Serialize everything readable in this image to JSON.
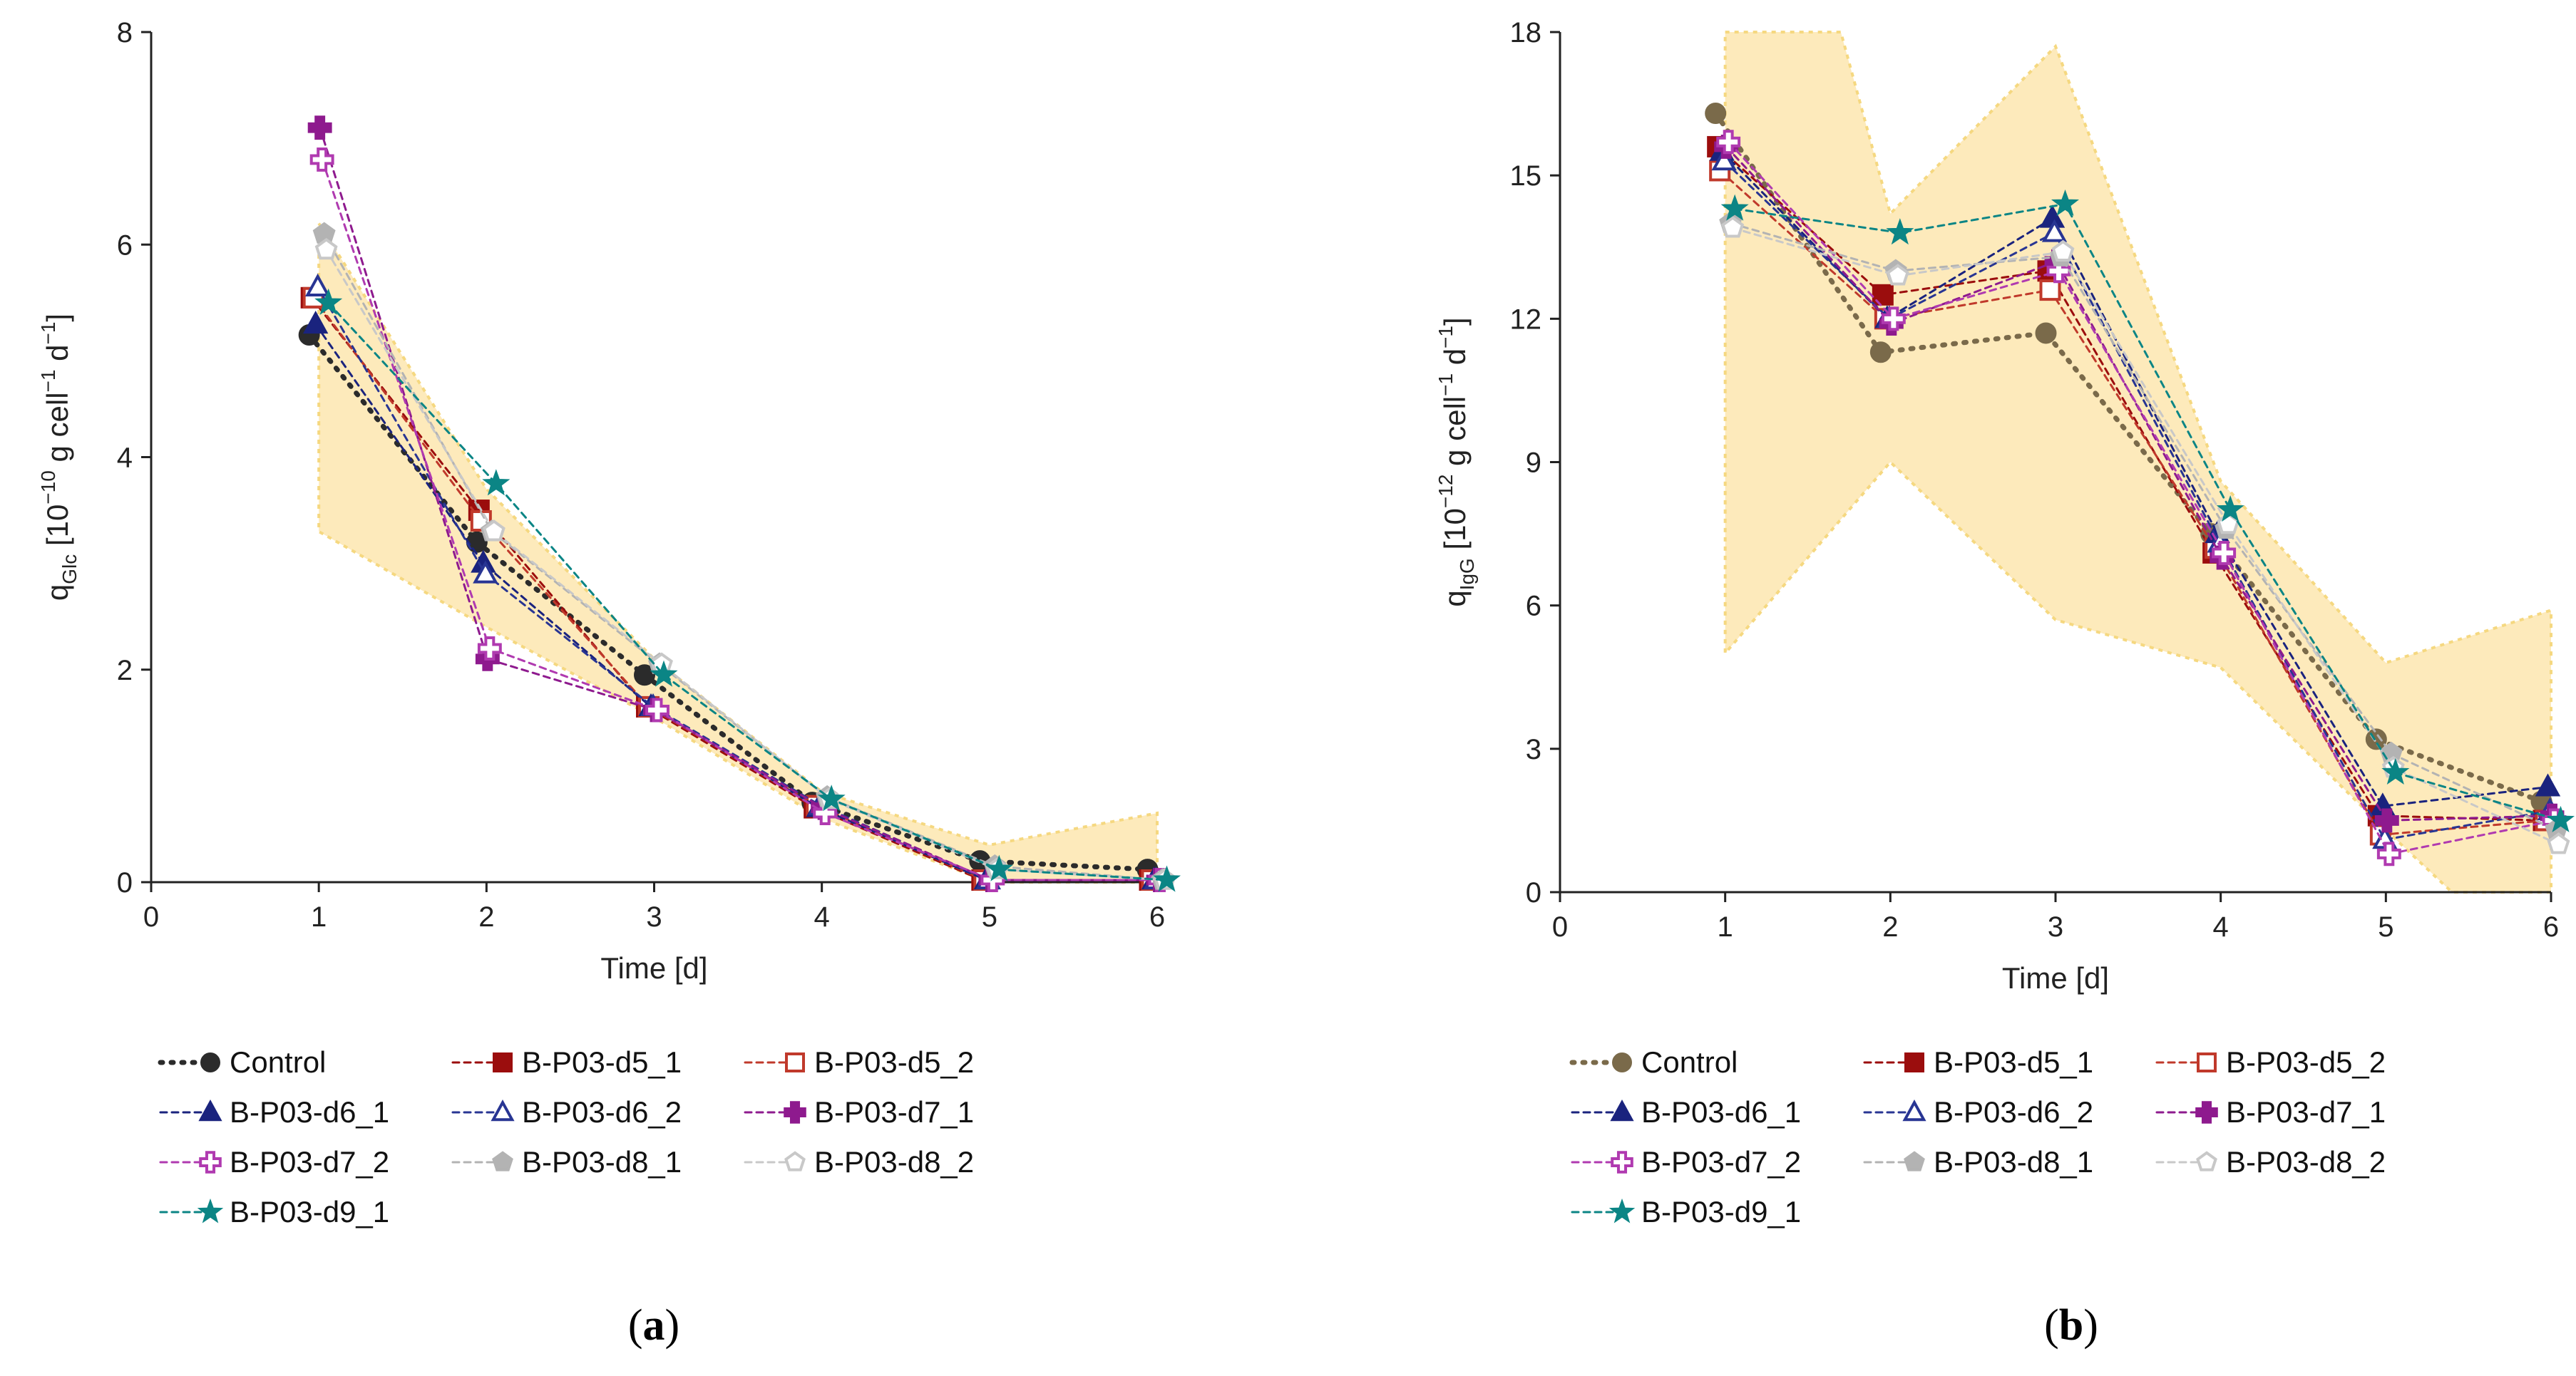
{
  "chart_data": [
    {
      "type": "line",
      "panel": "(a)",
      "panel_label_parts": [
        "(",
        "a",
        ")"
      ],
      "xlabel": "Time [d]",
      "ylabel": {
        "base": "q",
        "sub": "Glc",
        "unit_pre": " [10",
        "unit_exp": "−10",
        "unit_mid": " g cell",
        "unit_exp2": "−1",
        "unit_post": " d",
        "unit_exp3": "−1",
        "unit_close": "]"
      },
      "xlim": [
        0,
        6
      ],
      "ylim": [
        0,
        8
      ],
      "xticks": [
        "0",
        "1",
        "2",
        "3",
        "4",
        "5",
        "6"
      ],
      "yticks": [
        "0",
        "2",
        "4",
        "6",
        "8"
      ],
      "band": {
        "upper": [
          [
            1,
            6.2
          ],
          [
            2,
            3.7
          ],
          [
            3,
            2.1
          ],
          [
            4,
            0.85
          ],
          [
            5,
            0.35
          ],
          [
            6,
            0.65
          ]
        ],
        "lower": [
          [
            1,
            3.3
          ],
          [
            2,
            2.4
          ],
          [
            3,
            1.55
          ],
          [
            4,
            0.6
          ],
          [
            5,
            0.0
          ],
          [
            6,
            0.0
          ]
        ]
      },
      "series": [
        {
          "name": "Control",
          "color": "#2b2b2b",
          "marker": "circle",
          "filled": true,
          "points": [
            [
              1,
              5.15
            ],
            [
              2,
              3.2
            ],
            [
              3,
              1.95
            ],
            [
              4,
              0.75
            ],
            [
              5,
              0.2
            ],
            [
              6,
              0.12
            ]
          ]
        },
        {
          "name": "B-P03-d5_1",
          "color": "#9b0d0d",
          "marker": "square",
          "filled": true,
          "points": [
            [
              1,
              5.5
            ],
            [
              2,
              3.5
            ],
            [
              3,
              1.65
            ],
            [
              4,
              0.7
            ],
            [
              5,
              0.02
            ],
            [
              6,
              0.02
            ]
          ]
        },
        {
          "name": "B-P03-d5_2",
          "color": "#c0392b",
          "marker": "square",
          "filled": false,
          "points": [
            [
              1,
              5.5
            ],
            [
              2,
              3.4
            ],
            [
              3,
              1.65
            ],
            [
              4,
              0.72
            ],
            [
              5,
              0.02
            ],
            [
              6,
              0.02
            ]
          ]
        },
        {
          "name": "B-P03-d6_1",
          "color": "#1a237e",
          "marker": "triangle",
          "filled": true,
          "points": [
            [
              1,
              5.25
            ],
            [
              2,
              3.0
            ],
            [
              3,
              1.65
            ],
            [
              4,
              0.7
            ],
            [
              5,
              0.02
            ],
            [
              6,
              0.02
            ]
          ]
        },
        {
          "name": "B-P03-d6_2",
          "color": "#283593",
          "marker": "triangle",
          "filled": false,
          "points": [
            [
              1,
              5.6
            ],
            [
              2,
              2.9
            ],
            [
              3,
              1.65
            ],
            [
              4,
              0.72
            ],
            [
              5,
              0.02
            ],
            [
              6,
              0.02
            ]
          ]
        },
        {
          "name": "B-P03-d7_1",
          "color": "#8e1a8e",
          "marker": "plus",
          "filled": true,
          "points": [
            [
              1,
              7.1
            ],
            [
              2,
              2.1
            ],
            [
              3,
              1.62
            ],
            [
              4,
              0.7
            ],
            [
              5,
              0.02
            ],
            [
              6,
              0.02
            ]
          ]
        },
        {
          "name": "B-P03-d7_2",
          "color": "#b03ab0",
          "marker": "plus",
          "filled": false,
          "points": [
            [
              1,
              6.8
            ],
            [
              2,
              2.2
            ],
            [
              3,
              1.62
            ],
            [
              4,
              0.65
            ],
            [
              5,
              0.02
            ],
            [
              6,
              0.02
            ]
          ]
        },
        {
          "name": "B-P03-d8_1",
          "color": "#b3b3b3",
          "marker": "pentagon",
          "filled": true,
          "points": [
            [
              1,
              6.1
            ],
            [
              2,
              3.3
            ],
            [
              3,
              2.05
            ],
            [
              4,
              0.8
            ],
            [
              5,
              0.15
            ],
            [
              6,
              0.02
            ]
          ]
        },
        {
          "name": "B-P03-d8_2",
          "color": "#c8c8c8",
          "marker": "pentagon",
          "filled": false,
          "points": [
            [
              1,
              5.95
            ],
            [
              2,
              3.3
            ],
            [
              3,
              2.05
            ],
            [
              4,
              0.78
            ],
            [
              5,
              0.12
            ],
            [
              6,
              0.02
            ]
          ]
        },
        {
          "name": "B-P03-d9_1",
          "color": "#0b8585",
          "marker": "star",
          "filled": true,
          "points": [
            [
              1,
              5.45
            ],
            [
              2,
              3.75
            ],
            [
              3,
              1.95
            ],
            [
              4,
              0.78
            ],
            [
              5,
              0.12
            ],
            [
              6,
              0.02
            ]
          ]
        }
      ]
    },
    {
      "type": "line",
      "panel": "(b)",
      "panel_label_parts": [
        "(",
        "b",
        ")"
      ],
      "xlabel": "Time [d]",
      "ylabel": {
        "base": "q",
        "sub": "IgG",
        "unit_pre": " [10",
        "unit_exp": "−12",
        "unit_mid": " g cell",
        "unit_exp2": "−1",
        "unit_post": " d",
        "unit_exp3": "−1",
        "unit_close": "]"
      },
      "xlim": [
        0,
        6
      ],
      "ylim": [
        0,
        18
      ],
      "xticks": [
        "0",
        "1",
        "2",
        "3",
        "4",
        "5",
        "6"
      ],
      "yticks": [
        "0",
        "3",
        "6",
        "9",
        "12",
        "15",
        "18"
      ],
      "band": {
        "upper": [
          [
            1,
            18.0
          ],
          [
            1.7,
            18.0
          ],
          [
            2,
            14.2
          ],
          [
            3,
            17.7
          ],
          [
            4,
            8.6
          ],
          [
            5,
            4.8
          ],
          [
            6,
            5.9
          ]
        ],
        "lower": [
          [
            1,
            5.0
          ],
          [
            2,
            9.0
          ],
          [
            3,
            5.7
          ],
          [
            4,
            4.7
          ],
          [
            5,
            1.3
          ],
          [
            5.4,
            0.0
          ],
          [
            6,
            0.0
          ]
        ]
      },
      "series": [
        {
          "name": "Control",
          "color": "#7a6a4a",
          "marker": "circle",
          "filled": true,
          "points": [
            [
              1,
              16.3
            ],
            [
              2,
              11.3
            ],
            [
              3,
              11.7
            ],
            [
              4,
              7.5
            ],
            [
              5,
              3.2
            ],
            [
              6,
              1.9
            ]
          ]
        },
        {
          "name": "B-P03-d5_1",
          "color": "#9b0d0d",
          "marker": "square",
          "filled": true,
          "points": [
            [
              1,
              15.6
            ],
            [
              2,
              12.5
            ],
            [
              3,
              13.0
            ],
            [
              4,
              7.1
            ],
            [
              5,
              1.6
            ],
            [
              6,
              1.5
            ]
          ]
        },
        {
          "name": "B-P03-d5_2",
          "color": "#c0392b",
          "marker": "square",
          "filled": false,
          "points": [
            [
              1,
              15.1
            ],
            [
              2,
              12.0
            ],
            [
              3,
              12.6
            ],
            [
              4,
              7.2
            ],
            [
              5,
              1.2
            ],
            [
              6,
              1.5
            ]
          ]
        },
        {
          "name": "B-P03-d6_1",
          "color": "#1a237e",
          "marker": "triangle",
          "filled": true,
          "points": [
            [
              1,
              15.5
            ],
            [
              2,
              12.0
            ],
            [
              3,
              14.1
            ],
            [
              4,
              7.5
            ],
            [
              5,
              1.8
            ],
            [
              6,
              2.2
            ]
          ]
        },
        {
          "name": "B-P03-d6_2",
          "color": "#283593",
          "marker": "triangle",
          "filled": false,
          "points": [
            [
              1,
              15.3
            ],
            [
              2,
              12.0
            ],
            [
              3,
              13.8
            ],
            [
              4,
              7.3
            ],
            [
              5,
              1.1
            ],
            [
              6,
              1.7
            ]
          ]
        },
        {
          "name": "B-P03-d7_1",
          "color": "#8e1a8e",
          "marker": "plus",
          "filled": true,
          "points": [
            [
              1,
              15.6
            ],
            [
              2,
              11.9
            ],
            [
              3,
              13.2
            ],
            [
              4,
              7.0
            ],
            [
              5,
              1.5
            ],
            [
              6,
              1.6
            ]
          ]
        },
        {
          "name": "B-P03-d7_2",
          "color": "#b03ab0",
          "marker": "plus",
          "filled": false,
          "points": [
            [
              1,
              15.7
            ],
            [
              2,
              12.0
            ],
            [
              3,
              13.0
            ],
            [
              4,
              7.1
            ],
            [
              5,
              0.8
            ],
            [
              6,
              1.5
            ]
          ]
        },
        {
          "name": "B-P03-d8_1",
          "color": "#b3b3b3",
          "marker": "pentagon",
          "filled": true,
          "points": [
            [
              1,
              14.0
            ],
            [
              2,
              13.0
            ],
            [
              3,
              13.3
            ],
            [
              4,
              7.6
            ],
            [
              5,
              2.9
            ],
            [
              6,
              1.3
            ]
          ]
        },
        {
          "name": "B-P03-d8_2",
          "color": "#c8c8c8",
          "marker": "pentagon",
          "filled": false,
          "points": [
            [
              1,
              13.9
            ],
            [
              2,
              12.9
            ],
            [
              3,
              13.4
            ],
            [
              4,
              7.7
            ],
            [
              5,
              2.6
            ],
            [
              6,
              1.0
            ]
          ]
        },
        {
          "name": "B-P03-d9_1",
          "color": "#0b8585",
          "marker": "star",
          "filled": true,
          "points": [
            [
              1,
              14.3
            ],
            [
              2,
              13.8
            ],
            [
              3,
              14.4
            ],
            [
              4,
              8.0
            ],
            [
              5,
              2.5
            ],
            [
              6,
              1.5
            ]
          ]
        }
      ]
    }
  ],
  "colors": {
    "band_fill": "#fde9b8",
    "band_edge": "#f5d67a",
    "axis": "#222222"
  }
}
